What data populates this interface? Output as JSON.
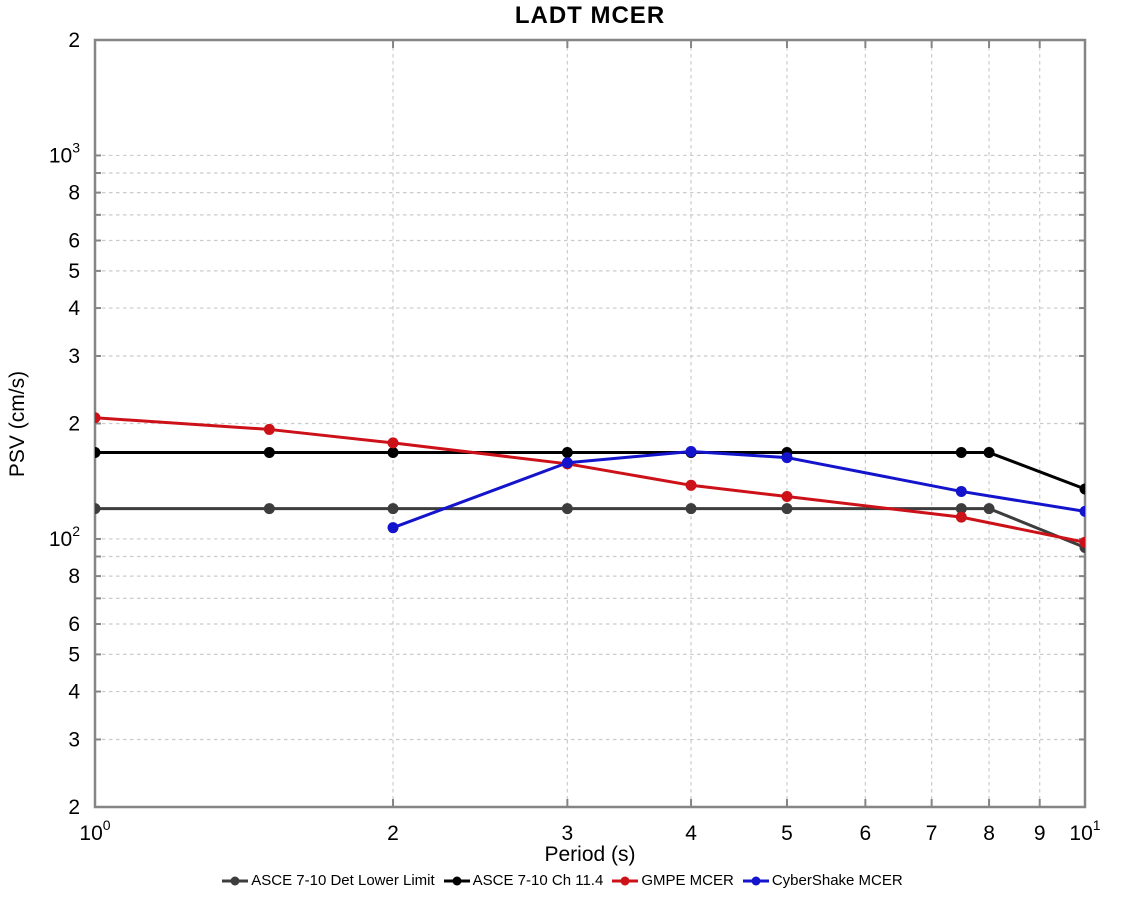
{
  "chart_data": {
    "type": "line",
    "title": "LADT MCER",
    "xlabel": "Period (s)",
    "ylabel": "PSV (cm/s)",
    "xscale": "log",
    "yscale": "log",
    "xlim": [
      1,
      10
    ],
    "ylim": [
      20,
      2000
    ],
    "grid": true,
    "legend_position": "bottom",
    "colors": {
      "grid": "#cbcbcb",
      "spine": "#858585",
      "text": "#000000",
      "background": "#ffffff"
    },
    "xticks": [
      {
        "value": 1,
        "base": "10",
        "exp": "0"
      },
      {
        "value": 2,
        "label": "2"
      },
      {
        "value": 3,
        "label": "3"
      },
      {
        "value": 4,
        "label": "4"
      },
      {
        "value": 5,
        "label": "5"
      },
      {
        "value": 6,
        "label": "6"
      },
      {
        "value": 7,
        "label": "7"
      },
      {
        "value": 8,
        "label": "8"
      },
      {
        "value": 9,
        "label": "9"
      },
      {
        "value": 10,
        "base": "10",
        "exp": "1"
      }
    ],
    "yticks": [
      {
        "value": 2000,
        "label": "2"
      },
      {
        "value": 1000,
        "base": "10",
        "exp": "3"
      },
      {
        "value": 800,
        "label": "8"
      },
      {
        "value": 600,
        "label": "6"
      },
      {
        "value": 500,
        "label": "5"
      },
      {
        "value": 400,
        "label": "4"
      },
      {
        "value": 300,
        "label": "3"
      },
      {
        "value": 200,
        "label": "2"
      },
      {
        "value": 100,
        "base": "10",
        "exp": "2"
      },
      {
        "value": 80,
        "label": "8"
      },
      {
        "value": 60,
        "label": "6"
      },
      {
        "value": 50,
        "label": "5"
      },
      {
        "value": 40,
        "label": "4"
      },
      {
        "value": 30,
        "label": "3"
      },
      {
        "value": 20,
        "label": "2"
      }
    ],
    "xgrid": [
      2,
      3,
      4,
      5,
      6,
      7,
      8,
      9
    ],
    "ygrid": [
      30,
      40,
      50,
      60,
      70,
      80,
      90,
      100,
      200,
      300,
      400,
      500,
      600,
      700,
      800,
      900,
      1000
    ],
    "series": [
      {
        "name": "ASCE 7-10 Det Lower Limit",
        "color": "#3d3d3d",
        "marker": "circle",
        "x": [
          1,
          1.5,
          2,
          3,
          4,
          5,
          7.5,
          8,
          10
        ],
        "y": [
          120,
          120,
          120,
          120,
          120,
          120,
          120,
          120,
          95
        ]
      },
      {
        "name": "ASCE 7-10 Ch 11.4",
        "color": "#000000",
        "marker": "circle",
        "x": [
          1,
          1.5,
          2,
          3,
          4,
          5,
          7.5,
          8,
          10
        ],
        "y": [
          168,
          168,
          168,
          168,
          168,
          168,
          168,
          168,
          135
        ]
      },
      {
        "name": "GMPE MCER",
        "color": "#cc1118",
        "marker": "circle",
        "x": [
          1,
          1.5,
          2,
          3,
          4,
          5,
          7.5,
          10
        ],
        "y": [
          207,
          193,
          178,
          157,
          138,
          129,
          114,
          98
        ]
      },
      {
        "name": "CyberShake MCER",
        "color": "#1414cc",
        "marker": "circle",
        "x": [
          2,
          3,
          4,
          5,
          7.5,
          10
        ],
        "y": [
          107,
          158,
          169,
          163,
          133,
          118
        ]
      }
    ]
  }
}
